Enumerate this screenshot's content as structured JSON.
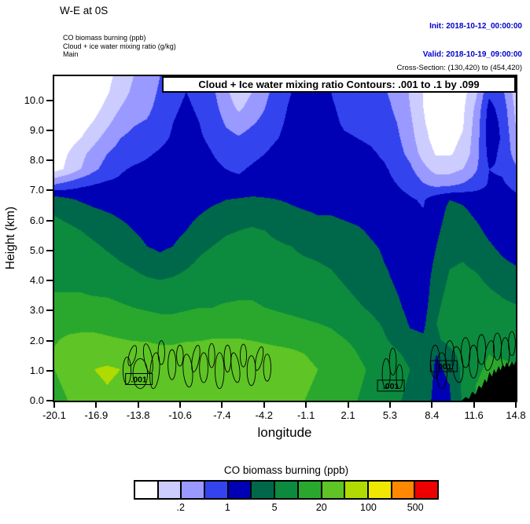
{
  "header": {
    "title": "W-E at 0S",
    "init_line": "Init: 2018-10-12_00:00:00",
    "valid_line": "Valid: 2018-10-19_09:00:00",
    "field_lines": [
      "CO biomass burning   (ppb)",
      "Cloud + ice water mixing ratio   (g/kg)",
      "Main"
    ],
    "cross_section": "Cross-Section: (130,420) to (454,420)"
  },
  "plot": {
    "contour_box_title": "Cloud + Ice water mixing ratio Contours: .001 to .1 by .099",
    "xlabel": "longitude",
    "ylabel": "Height (km)",
    "x_ticks": [
      "-20.1",
      "-16.9",
      "-13.8",
      "-10.6",
      "-7.4",
      "-4.2",
      "-1.1",
      "2.1",
      "5.3",
      "8.4",
      "11.6",
      "14.8"
    ],
    "y_ticks": [
      "0.0",
      "1.0",
      "2.0",
      "3.0",
      "4.0",
      "5.0",
      "6.0",
      "7.0",
      "8.0",
      "9.0",
      "10.0"
    ],
    "contour_label": ".001"
  },
  "colorbar": {
    "title": "CO biomass burning  (ppb)",
    "tick_labels": [
      ".2",
      "1",
      "5",
      "20",
      "100",
      "500"
    ],
    "label_boundary_indices": [
      2,
      4,
      6,
      8,
      10,
      12
    ],
    "colors": [
      "#ffffff",
      "#ccccff",
      "#9999ff",
      "#3344ee",
      "#0000b4",
      "#00684a",
      "#0c8a3e",
      "#2aa82e",
      "#5fc425",
      "#b0db00",
      "#f0e800",
      "#ff8800",
      "#ee0000"
    ]
  },
  "chart_data": {
    "type": "heatmap",
    "title": "W-E at 0S",
    "xlabel": "longitude",
    "ylabel": "Height (km)",
    "x_range": [
      -20.1,
      14.8
    ],
    "y_range": [
      0,
      10.8
    ],
    "x_tick_values": [
      -20.1,
      -16.9,
      -13.8,
      -10.6,
      -7.4,
      -4.2,
      -1.1,
      2.1,
      5.3,
      8.4,
      11.6,
      14.8
    ],
    "y_tick_values": [
      0,
      1,
      2,
      3,
      4,
      5,
      6,
      7,
      8,
      9,
      10
    ],
    "co_levels_ppb": [
      0.1,
      0.2,
      0.5,
      1,
      2,
      5,
      10,
      20,
      50,
      100,
      200,
      500
    ],
    "palette": [
      "#ffffff",
      "#ccccff",
      "#9999ff",
      "#3344ee",
      "#0000b4",
      "#00684a",
      "#0c8a3e",
      "#2aa82e",
      "#5fc425",
      "#b0db00",
      "#f0e800",
      "#ff8800",
      "#ee0000"
    ],
    "co_level_grid": [
      [
        0,
        0,
        0,
        0.2,
        0.7,
        1.4,
        2.0,
        2.2,
        3.0,
        3.6,
        3.8,
        3.6,
        3.0,
        2.0,
        1.2,
        1.8,
        2.6,
        3.2,
        3.8,
        4.2,
        4.2,
        3.8,
        3.4,
        3.2,
        3.2,
        3.0,
        2.6,
        1.8,
        1.0,
        0.4,
        0.2,
        0.4,
        1.2,
        3.0,
        2.6,
        1.4
      ],
      [
        0,
        0,
        0,
        0.3,
        0.9,
        1.6,
        2.2,
        2.4,
        3.2,
        3.8,
        4.0,
        3.8,
        3.2,
        2.2,
        1.4,
        2.0,
        2.8,
        3.4,
        4.0,
        4.4,
        4.4,
        4.0,
        3.6,
        3.4,
        3.3,
        3.1,
        2.7,
        1.9,
        1.0,
        0.4,
        0.3,
        0.6,
        1.8,
        3.8,
        3.2,
        1.6
      ],
      [
        0,
        0,
        0.2,
        0.6,
        1.3,
        2.0,
        2.5,
        2.7,
        3.4,
        3.9,
        4.1,
        3.9,
        3.4,
        2.5,
        1.8,
        2.4,
        3.0,
        3.6,
        4.2,
        4.5,
        4.5,
        4.1,
        3.8,
        3.6,
        3.5,
        3.3,
        2.8,
        2.0,
        1.0,
        0.4,
        0.4,
        0.8,
        2.2,
        4.3,
        3.6,
        1.8
      ],
      [
        0,
        0.1,
        0.5,
        1.1,
        1.8,
        2.5,
        2.9,
        3.1,
        3.6,
        4.0,
        4.2,
        4.0,
        3.6,
        2.9,
        2.5,
        2.9,
        3.3,
        3.8,
        4.3,
        4.6,
        4.6,
        4.2,
        3.9,
        3.8,
        3.7,
        3.5,
        3.0,
        2.2,
        1.1,
        0.5,
        0.5,
        0.9,
        2.4,
        4.5,
        3.8,
        2.0
      ],
      [
        0.2,
        0.5,
        1.0,
        1.7,
        2.4,
        3.0,
        3.3,
        3.5,
        3.8,
        4.1,
        4.3,
        4.1,
        3.8,
        3.3,
        3.1,
        3.4,
        3.7,
        4.0,
        4.4,
        4.6,
        4.6,
        4.3,
        4.1,
        4.0,
        3.9,
        3.7,
        3.2,
        2.4,
        1.3,
        0.6,
        0.7,
        1.1,
        2.5,
        4.5,
        3.9,
        2.3
      ],
      [
        0.5,
        1.0,
        1.7,
        2.4,
        3.0,
        3.4,
        3.7,
        3.9,
        4.1,
        4.3,
        4.4,
        4.3,
        4.0,
        3.7,
        3.6,
        3.8,
        4.0,
        4.3,
        4.5,
        4.7,
        4.6,
        4.4,
        4.3,
        4.2,
        4.1,
        3.9,
        3.4,
        2.7,
        1.6,
        0.9,
        0.9,
        1.3,
        2.6,
        4.3,
        3.8,
        2.6
      ],
      [
        0.6,
        1.2,
        2.0,
        2.8,
        3.4,
        3.9,
        4.1,
        4.2,
        4.3,
        4.4,
        4.5,
        4.4,
        4.2,
        4.0,
        3.9,
        4.1,
        4.3,
        4.4,
        4.6,
        4.7,
        4.6,
        4.5,
        4.4,
        4.3,
        4.2,
        4.1,
        3.8,
        3.2,
        2.3,
        1.6,
        1.6,
        2.0,
        2.9,
        4.0,
        3.9,
        3.2
      ],
      [
        3.0,
        3.4,
        3.8,
        4.0,
        4.2,
        4.2,
        4.3,
        4.4,
        4.4,
        4.5,
        4.5,
        4.4,
        4.3,
        4.2,
        4.2,
        4.3,
        4.4,
        4.5,
        4.6,
        4.6,
        4.5,
        4.5,
        4.4,
        4.3,
        4.3,
        4.2,
        4.0,
        3.7,
        3.1,
        2.7,
        2.8,
        3.1,
        3.5,
        4.1,
        4.1,
        3.8
      ],
      [
        5.6,
        5.2,
        4.9,
        4.7,
        4.6,
        4.6,
        4.6,
        4.5,
        4.4,
        4.4,
        4.5,
        4.6,
        4.8,
        5.0,
        5.1,
        5.2,
        5.1,
        5.0,
        4.9,
        4.8,
        4.8,
        4.7,
        4.6,
        4.6,
        4.5,
        4.4,
        4.3,
        4.1,
        3.9,
        4.6,
        5.0,
        4.9,
        4.7,
        4.5,
        4.4,
        4.2
      ],
      [
        6.0,
        5.8,
        5.6,
        5.3,
        5.1,
        4.9,
        4.7,
        4.5,
        4.3,
        4.5,
        4.7,
        5.0,
        5.3,
        5.5,
        5.7,
        5.7,
        5.6,
        5.4,
        5.2,
        5.1,
        5.0,
        5.0,
        4.9,
        4.8,
        4.7,
        4.5,
        4.4,
        4.2,
        4.1,
        4.6,
        5.3,
        5.2,
        4.9,
        4.6,
        4.5,
        4.3
      ],
      [
        6.3,
        6.2,
        6.0,
        5.8,
        5.6,
        5.3,
        5.0,
        4.7,
        4.5,
        4.7,
        5.0,
        5.4,
        5.7,
        5.9,
        6.0,
        6.1,
        6.0,
        5.8,
        5.6,
        5.5,
        5.4,
        5.3,
        5.2,
        5.1,
        4.9,
        4.7,
        4.5,
        4.3,
        4.2,
        4.8,
        5.5,
        5.5,
        5.2,
        4.8,
        4.6,
        4.4
      ],
      [
        6.5,
        6.4,
        6.3,
        6.1,
        5.9,
        5.7,
        5.4,
        5.0,
        4.8,
        5.0,
        5.4,
        5.8,
        6.0,
        6.2,
        6.3,
        6.3,
        6.2,
        6.1,
        6.0,
        5.8,
        5.7,
        5.6,
        5.5,
        5.3,
        5.1,
        4.9,
        4.6,
        4.4,
        4.3,
        5.0,
        5.7,
        5.8,
        5.5,
        5.1,
        4.8,
        4.6
      ],
      [
        6.6,
        6.6,
        6.5,
        6.4,
        6.2,
        6.0,
        5.8,
        5.5,
        5.3,
        5.5,
        5.8,
        6.1,
        6.3,
        6.4,
        6.5,
        6.5,
        6.4,
        6.3,
        6.2,
        6.1,
        6.0,
        5.9,
        5.7,
        5.5,
        5.3,
        5.0,
        4.7,
        4.5,
        4.4,
        5.2,
        5.9,
        6.0,
        5.8,
        5.4,
        5.1,
        4.9
      ],
      [
        6.8,
        6.8,
        6.7,
        6.7,
        6.6,
        6.4,
        6.2,
        6.0,
        5.9,
        6.0,
        6.2,
        6.4,
        6.5,
        6.6,
        6.7,
        6.7,
        6.6,
        6.5,
        6.4,
        6.3,
        6.2,
        6.1,
        5.9,
        5.7,
        5.5,
        5.2,
        4.8,
        4.6,
        4.5,
        5.4,
        6.1,
        6.2,
        6.1,
        5.8,
        5.5,
        5.3
      ],
      [
        7.0,
        7.0,
        7.0,
        6.9,
        6.9,
        6.8,
        6.7,
        6.5,
        6.4,
        6.5,
        6.6,
        6.7,
        6.8,
        6.8,
        6.9,
        6.9,
        6.8,
        6.7,
        6.6,
        6.5,
        6.4,
        6.3,
        6.1,
        5.9,
        5.7,
        5.4,
        5.0,
        4.6,
        4.5,
        5.6,
        6.3,
        6.4,
        6.3,
        6.1,
        5.9,
        5.7
      ],
      [
        7.3,
        7.3,
        7.3,
        7.3,
        7.2,
        7.1,
        7.0,
        6.9,
        6.8,
        6.8,
        6.9,
        7.0,
        7.0,
        7.1,
        7.1,
        7.1,
        7.0,
        6.9,
        6.8,
        6.7,
        6.6,
        6.5,
        6.3,
        6.1,
        5.9,
        5.6,
        5.2,
        4.7,
        4.6,
        5.8,
        6.5,
        6.6,
        6.5,
        6.4,
        6.2,
        6.1
      ],
      [
        7.6,
        7.7,
        7.7,
        7.7,
        7.6,
        7.5,
        7.5,
        7.4,
        7.3,
        7.3,
        7.4,
        7.5,
        7.5,
        7.6,
        7.6,
        7.5,
        7.4,
        7.3,
        7.2,
        7.1,
        7.0,
        6.9,
        6.7,
        6.5,
        6.2,
        5.9,
        5.5,
        4.9,
        4.8,
        6.0,
        6.6,
        6.7,
        6.7,
        6.6,
        6.5,
        6.4
      ],
      [
        7.9,
        8.1,
        8.2,
        8.2,
        8.1,
        8.0,
        7.9,
        7.9,
        7.8,
        7.8,
        7.9,
        7.9,
        8.0,
        8.0,
        8.0,
        7.9,
        7.8,
        7.7,
        7.6,
        7.5,
        7.3,
        7.2,
        7.0,
        6.8,
        6.5,
        6.1,
        5.7,
        5.2,
        5.1,
        5.8,
        6.5,
        6.8,
        6.8,
        6.8,
        6.7,
        6.6
      ],
      [
        8.1,
        8.4,
        8.6,
        8.7,
        8.7,
        8.6,
        8.5,
        8.4,
        8.3,
        8.3,
        8.4,
        8.5,
        8.6,
        8.7,
        8.7,
        8.6,
        8.4,
        8.3,
        8.2,
        8.0,
        7.8,
        7.6,
        7.3,
        7.0,
        6.7,
        6.4,
        6.1,
        5.8,
        5.6,
        5.0,
        5.6,
        6.4,
        6.8,
        7.0,
        6.9,
        6.8
      ],
      [
        8.0,
        8.4,
        8.8,
        9.0,
        9.1,
        9.0,
        8.9,
        8.7,
        8.6,
        8.5,
        8.6,
        8.8,
        8.9,
        9.0,
        9.0,
        8.9,
        8.7,
        8.5,
        8.3,
        8.2,
        8.0,
        7.8,
        7.5,
        7.2,
        6.9,
        6.6,
        6.3,
        6.0,
        5.8,
        4.8,
        5.2,
        6.2,
        6.9,
        7.1,
        7.2,
        7.1
      ],
      [
        7.8,
        8.2,
        8.6,
        8.9,
        9.0,
        8.9,
        8.8,
        8.6,
        8.5,
        8.5,
        8.6,
        8.7,
        8.8,
        8.9,
        8.9,
        8.8,
        8.6,
        8.4,
        8.2,
        8.1,
        7.9,
        7.7,
        7.4,
        7.1,
        6.8,
        6.5,
        6.2,
        5.9,
        5.7,
        4.7,
        5.0,
        6.2,
        7.0,
        7.2,
        7.3,
        7.3
      ],
      [
        7.6,
        8.0,
        8.4,
        8.7,
        8.8,
        8.8,
        8.7,
        8.5,
        8.4,
        8.4,
        8.5,
        8.6,
        8.7,
        8.8,
        8.8,
        8.7,
        8.5,
        8.3,
        8.1,
        8.0,
        7.8,
        7.6,
        7.3,
        7.0,
        6.7,
        6.4,
        6.1,
        5.8,
        5.6,
        4.6,
        4.9,
        6.1,
        7.0,
        7.2,
        7.3,
        7.3
      ]
    ],
    "cloud_contours": {
      "level_label": ".001",
      "ellipses": [
        [
          -14.6,
          1.0,
          0.3,
          0.45,
          0
        ],
        [
          -14.2,
          1.5,
          0.25,
          0.35,
          15
        ],
        [
          -13.6,
          0.9,
          0.55,
          0.5,
          0
        ],
        [
          -13.0,
          1.4,
          0.3,
          0.5,
          -10
        ],
        [
          -12.5,
          1.0,
          0.35,
          0.6,
          5
        ],
        [
          -12.0,
          1.6,
          0.25,
          0.4,
          0
        ],
        [
          -11.2,
          1.2,
          0.3,
          0.5,
          0
        ],
        [
          -10.6,
          1.5,
          0.25,
          0.35,
          0
        ],
        [
          -10.0,
          1.0,
          0.35,
          0.55,
          -5
        ],
        [
          -9.4,
          1.4,
          0.26,
          0.45,
          10
        ],
        [
          -8.8,
          1.1,
          0.32,
          0.5,
          0
        ],
        [
          -8.2,
          1.5,
          0.24,
          0.4,
          0
        ],
        [
          -7.6,
          1.0,
          0.34,
          0.6,
          0
        ],
        [
          -7.0,
          1.4,
          0.26,
          0.45,
          0
        ],
        [
          -6.4,
          1.1,
          0.3,
          0.5,
          -8
        ],
        [
          -5.8,
          1.5,
          0.24,
          0.38,
          0
        ],
        [
          -5.2,
          1.0,
          0.32,
          0.5,
          0
        ],
        [
          -4.6,
          1.4,
          0.24,
          0.4,
          12
        ],
        [
          -4.0,
          1.1,
          0.28,
          0.45,
          0
        ],
        [
          5.0,
          0.9,
          0.3,
          0.5,
          0
        ],
        [
          5.5,
          1.3,
          0.26,
          0.45,
          0
        ],
        [
          6.0,
          0.8,
          0.24,
          0.4,
          0
        ],
        [
          8.7,
          1.3,
          0.34,
          0.55,
          0
        ],
        [
          9.2,
          1.0,
          0.4,
          0.6,
          0
        ],
        [
          9.8,
          1.5,
          0.34,
          0.5,
          0
        ],
        [
          10.4,
          1.2,
          0.4,
          0.6,
          -5
        ],
        [
          11.0,
          1.6,
          0.34,
          0.5,
          0
        ],
        [
          11.6,
          1.3,
          0.34,
          0.55,
          0
        ],
        [
          12.2,
          1.7,
          0.32,
          0.5,
          0
        ],
        [
          12.8,
          1.5,
          0.34,
          0.5,
          8
        ],
        [
          13.4,
          1.8,
          0.3,
          0.45,
          0
        ],
        [
          14.0,
          1.6,
          0.32,
          0.5,
          0
        ],
        [
          14.5,
          1.9,
          0.26,
          0.4,
          0
        ]
      ],
      "labels": [
        [
          -13.7,
          0.72
        ],
        [
          5.35,
          0.5
        ],
        [
          9.35,
          1.15
        ]
      ]
    },
    "terrain": [
      [
        10.7,
        0
      ],
      [
        11.0,
        0.12
      ],
      [
        11.25,
        0.06
      ],
      [
        11.5,
        0.3
      ],
      [
        11.75,
        0.2
      ],
      [
        12.0,
        0.5
      ],
      [
        12.2,
        0.42
      ],
      [
        12.45,
        0.72
      ],
      [
        12.6,
        0.6
      ],
      [
        12.8,
        0.95
      ],
      [
        13.0,
        0.8
      ],
      [
        13.15,
        1.05
      ],
      [
        13.3,
        0.92
      ],
      [
        13.5,
        1.15
      ],
      [
        13.65,
        1.0
      ],
      [
        13.8,
        1.22
      ],
      [
        13.95,
        1.08
      ],
      [
        14.1,
        1.28
      ],
      [
        14.3,
        1.12
      ],
      [
        14.5,
        1.3
      ],
      [
        14.65,
        1.18
      ],
      [
        14.8,
        1.32
      ],
      [
        14.8,
        0
      ]
    ]
  }
}
